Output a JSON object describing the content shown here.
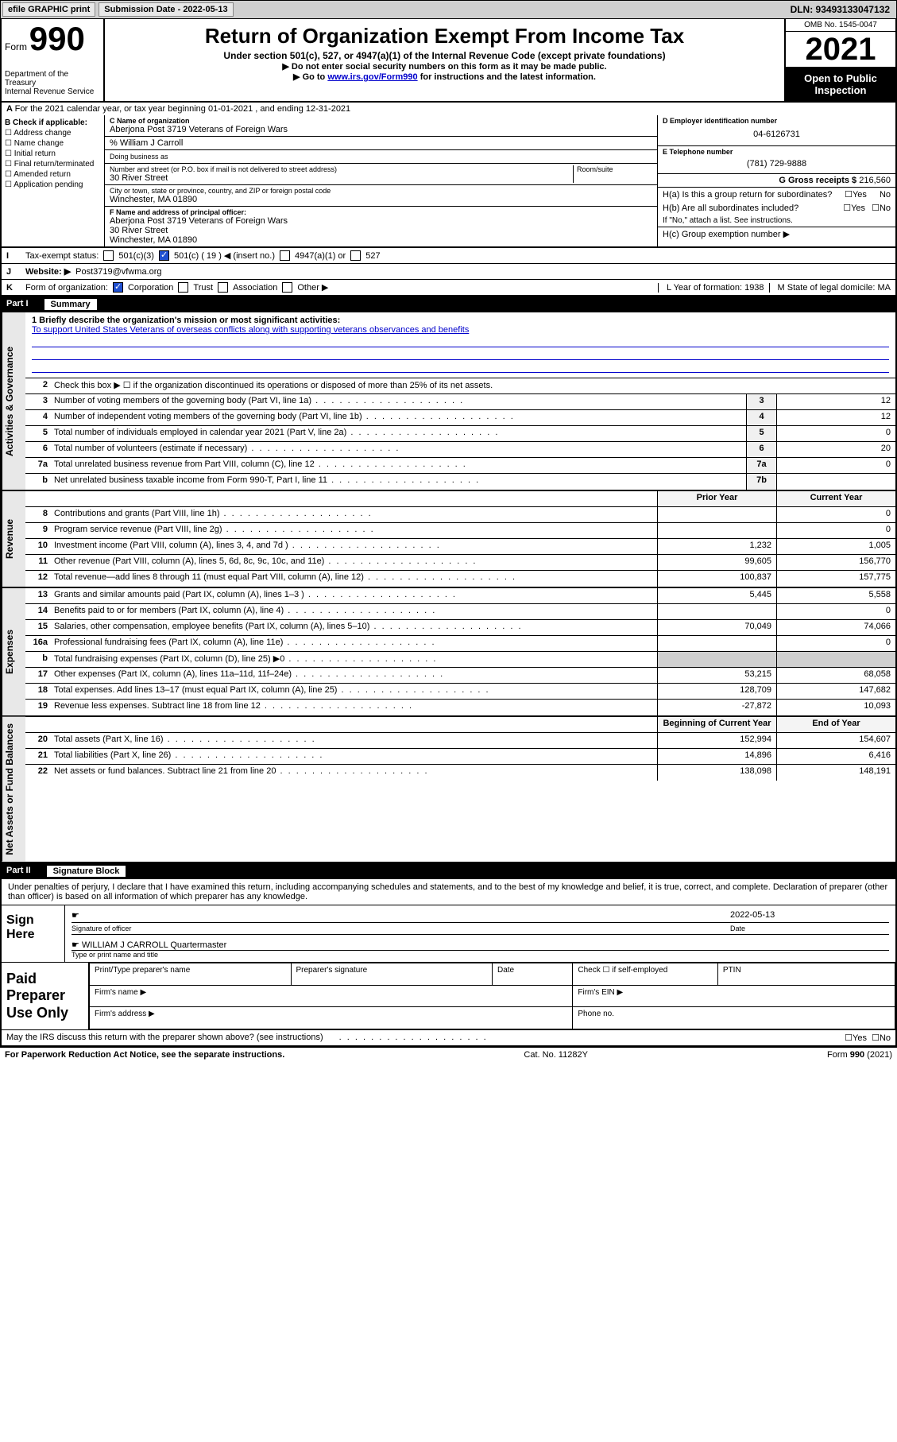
{
  "topbar": {
    "efile": "efile GRAPHIC print",
    "sub_label": "Submission Date - 2022-05-13",
    "dln": "DLN: 93493133047132"
  },
  "header": {
    "form_word": "Form",
    "form_num": "990",
    "dept": "Department of the Treasury",
    "irs": "Internal Revenue Service",
    "title": "Return of Organization Exempt From Income Tax",
    "sub1": "Under section 501(c), 527, or 4947(a)(1) of the Internal Revenue Code (except private foundations)",
    "sub2a": "▶ Do not enter social security numbers on this form as it may be made public.",
    "sub2b_pre": "▶ Go to ",
    "sub2b_link": "www.irs.gov/Form990",
    "sub2b_post": " for instructions and the latest information.",
    "omb": "OMB No. 1545-0047",
    "year": "2021",
    "public": "Open to Public Inspection"
  },
  "section_a": {
    "tax_year": "For the 2021 calendar year, or tax year beginning 01-01-2021   , and ending 12-31-2021",
    "b_label": "B Check if applicable:",
    "b_opts": [
      "Address change",
      "Name change",
      "Initial return",
      "Final return/terminated",
      "Amended return",
      "Application pending"
    ],
    "c_name_label": "C Name of organization",
    "c_name": "Aberjona Post 3719 Veterans of Foreign Wars",
    "care_of": "% William J Carroll",
    "dba_label": "Doing business as",
    "addr_label": "Number and street (or P.O. box if mail is not delivered to street address)",
    "addr": "30 River Street",
    "room_label": "Room/suite",
    "city_label": "City or town, state or province, country, and ZIP or foreign postal code",
    "city": "Winchester, MA  01890",
    "d_label": "D Employer identification number",
    "d_val": "04-6126731",
    "e_label": "E Telephone number",
    "e_val": "(781) 729-9888",
    "g_label": "G Gross receipts $",
    "g_val": "216,560",
    "f_label": "F Name and address of principal officer:",
    "f_name": "Aberjona Post 3719 Veterans of Foreign Wars",
    "f_addr1": "30 River Street",
    "f_addr2": "Winchester, MA  01890",
    "ha": "H(a)  Is this a group return for subordinates?",
    "hb": "H(b)  Are all subordinates included?",
    "hb_note": "If \"No,\" attach a list. See instructions.",
    "hc": "H(c)  Group exemption number ▶",
    "yes": "Yes",
    "no": "No"
  },
  "meta": {
    "i": "Tax-exempt status:",
    "i_opts": [
      "501(c)(3)",
      "501(c) ( 19 ) ◀ (insert no.)",
      "4947(a)(1) or",
      "527"
    ],
    "j": "Website: ▶",
    "j_val": "Post3719@vfwma.org",
    "k": "Form of organization:",
    "k_opts": [
      "Corporation",
      "Trust",
      "Association",
      "Other ▶"
    ],
    "l": "L Year of formation: 1938",
    "m": "M State of legal domicile: MA"
  },
  "part1": {
    "label": "Part I",
    "title": "Summary",
    "mission_intro": "1   Briefly describe the organization's mission or most significant activities:",
    "mission": "To support United States Veterans of overseas conflicts along with supporting veterans observances and benefits",
    "line2": "Check this box ▶ ☐  if the organization discontinued its operations or disposed of more than 25% of its net assets.",
    "prior_year": "Prior Year",
    "current_year": "Current Year",
    "begin_year": "Beginning of Current Year",
    "end_year": "End of Year"
  },
  "vtabs": {
    "gov": "Activities & Governance",
    "rev": "Revenue",
    "exp": "Expenses",
    "net": "Net Assets or Fund Balances"
  },
  "lines_gov": [
    {
      "n": "3",
      "d": "Number of voting members of the governing body (Part VI, line 1a)",
      "box": "3",
      "v": "12"
    },
    {
      "n": "4",
      "d": "Number of independent voting members of the governing body (Part VI, line 1b)",
      "box": "4",
      "v": "12"
    },
    {
      "n": "5",
      "d": "Total number of individuals employed in calendar year 2021 (Part V, line 2a)",
      "box": "5",
      "v": "0"
    },
    {
      "n": "6",
      "d": "Total number of volunteers (estimate if necessary)",
      "box": "6",
      "v": "20"
    },
    {
      "n": "7a",
      "d": "Total unrelated business revenue from Part VIII, column (C), line 12",
      "box": "7a",
      "v": "0"
    },
    {
      "n": "b",
      "d": "Net unrelated business taxable income from Form 990-T, Part I, line 11",
      "box": "7b",
      "v": ""
    }
  ],
  "lines_rev": [
    {
      "n": "8",
      "d": "Contributions and grants (Part VIII, line 1h)",
      "p": "",
      "c": "0"
    },
    {
      "n": "9",
      "d": "Program service revenue (Part VIII, line 2g)",
      "p": "",
      "c": "0"
    },
    {
      "n": "10",
      "d": "Investment income (Part VIII, column (A), lines 3, 4, and 7d )",
      "p": "1,232",
      "c": "1,005"
    },
    {
      "n": "11",
      "d": "Other revenue (Part VIII, column (A), lines 5, 6d, 8c, 9c, 10c, and 11e)",
      "p": "99,605",
      "c": "156,770"
    },
    {
      "n": "12",
      "d": "Total revenue—add lines 8 through 11 (must equal Part VIII, column (A), line 12)",
      "p": "100,837",
      "c": "157,775"
    }
  ],
  "lines_exp": [
    {
      "n": "13",
      "d": "Grants and similar amounts paid (Part IX, column (A), lines 1–3 )",
      "p": "5,445",
      "c": "5,558"
    },
    {
      "n": "14",
      "d": "Benefits paid to or for members (Part IX, column (A), line 4)",
      "p": "",
      "c": "0"
    },
    {
      "n": "15",
      "d": "Salaries, other compensation, employee benefits (Part IX, column (A), lines 5–10)",
      "p": "70,049",
      "c": "74,066"
    },
    {
      "n": "16a",
      "d": "Professional fundraising fees (Part IX, column (A), line 11e)",
      "p": "",
      "c": "0"
    },
    {
      "n": "b",
      "d": "Total fundraising expenses (Part IX, column (D), line 25) ▶0",
      "p": "shade",
      "c": "shade"
    },
    {
      "n": "17",
      "d": "Other expenses (Part IX, column (A), lines 11a–11d, 11f–24e)",
      "p": "53,215",
      "c": "68,058"
    },
    {
      "n": "18",
      "d": "Total expenses. Add lines 13–17 (must equal Part IX, column (A), line 25)",
      "p": "128,709",
      "c": "147,682"
    },
    {
      "n": "19",
      "d": "Revenue less expenses. Subtract line 18 from line 12",
      "p": "-27,872",
      "c": "10,093"
    }
  ],
  "lines_net": [
    {
      "n": "20",
      "d": "Total assets (Part X, line 16)",
      "p": "152,994",
      "c": "154,607"
    },
    {
      "n": "21",
      "d": "Total liabilities (Part X, line 26)",
      "p": "14,896",
      "c": "6,416"
    },
    {
      "n": "22",
      "d": "Net assets or fund balances. Subtract line 21 from line 20",
      "p": "138,098",
      "c": "148,191"
    }
  ],
  "part2": {
    "label": "Part II",
    "title": "Signature Block",
    "declare": "Under penalties of perjury, I declare that I have examined this return, including accompanying schedules and statements, and to the best of my knowledge and belief, it is true, correct, and complete. Declaration of preparer (other than officer) is based on all information of which preparer has any knowledge.",
    "sign_here": "Sign Here",
    "sig_officer": "Signature of officer",
    "sig_date": "2022-05-13",
    "date_label": "Date",
    "officer_name": "WILLIAM J CARROLL  Quartermaster",
    "type_name": "Type or print name and title",
    "paid": "Paid Preparer Use Only",
    "prep_name": "Print/Type preparer's name",
    "prep_sig": "Preparer's signature",
    "prep_date": "Date",
    "prep_check": "Check ☐ if self-employed",
    "ptin": "PTIN",
    "firm_name": "Firm's name  ▶",
    "firm_ein": "Firm's EIN ▶",
    "firm_addr": "Firm's address ▶",
    "phone": "Phone no.",
    "may_irs": "May the IRS discuss this return with the preparer shown above? (see instructions)",
    "paperwork": "For Paperwork Reduction Act Notice, see the separate instructions.",
    "cat": "Cat. No. 11282Y",
    "form_foot": "Form 990 (2021)"
  }
}
